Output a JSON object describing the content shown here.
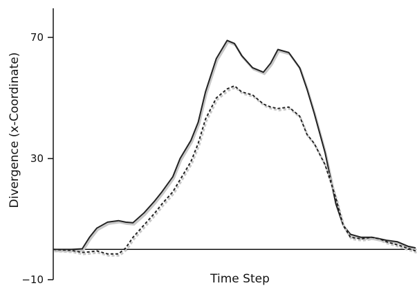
{
  "chart_data": {
    "type": "line",
    "title": "",
    "xlabel": "Time Step",
    "ylabel": "Divergence (x-Coordinate)",
    "ylim": [
      -10,
      80
    ],
    "yticks": [
      -10,
      30,
      70
    ],
    "ytick_labels": [
      "−10",
      "30",
      "70"
    ],
    "xticks": [],
    "grid": false,
    "legend": "none",
    "x": [
      0,
      0.05,
      0.08,
      0.1,
      0.12,
      0.15,
      0.18,
      0.2,
      0.22,
      0.25,
      0.28,
      0.3,
      0.33,
      0.35,
      0.38,
      0.4,
      0.42,
      0.45,
      0.48,
      0.5,
      0.52,
      0.55,
      0.58,
      0.6,
      0.62,
      0.65,
      0.68,
      0.7,
      0.72,
      0.75,
      0.78,
      0.8,
      0.82,
      0.85,
      0.88,
      0.9,
      0.92,
      0.95,
      0.98,
      1.0
    ],
    "series": [
      {
        "style": "solid",
        "color": "#222222",
        "values": [
          0.0,
          0.0,
          0.2,
          4.0,
          7.0,
          9.0,
          9.5,
          9.0,
          8.8,
          12.0,
          16.0,
          19.0,
          24.0,
          30.0,
          36.0,
          42.0,
          52.0,
          63.0,
          69.0,
          68.0,
          64.0,
          60.0,
          58.5,
          61.5,
          66.0,
          65.0,
          60.0,
          53.0,
          45.0,
          32.0,
          15.0,
          8.0,
          5.0,
          4.0,
          4.0,
          3.5,
          3.0,
          2.5,
          1.0,
          0.5
        ]
      },
      {
        "style": "dashed",
        "color": "#222222",
        "values": [
          0.0,
          -0.3,
          -1.0,
          -0.8,
          -0.5,
          -1.5,
          -1.5,
          0.5,
          4.0,
          8.0,
          12.0,
          15.0,
          19.0,
          23.0,
          29.0,
          35.0,
          43.0,
          50.0,
          53.0,
          54.0,
          52.0,
          51.0,
          48.0,
          47.0,
          46.5,
          47.0,
          44.0,
          38.0,
          35.0,
          28.0,
          17.0,
          8.0,
          4.0,
          3.5,
          4.0,
          3.5,
          2.5,
          1.5,
          0.3,
          -0.5
        ]
      }
    ],
    "baseline": 0
  }
}
